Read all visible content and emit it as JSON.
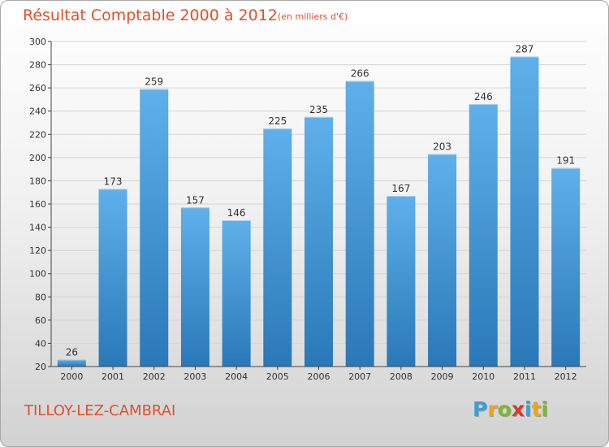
{
  "header": {
    "title": "Résultat Comptable 2000 à 2012",
    "subtitle": "(en milliers d'€)"
  },
  "footer": {
    "commune": "TILLOY-LEZ-CAMBRAI",
    "logo": [
      "P",
      "r",
      "o",
      "x",
      "i",
      "t",
      "i"
    ],
    "logo_colors": [
      "#3aa0d8",
      "#e8a51e",
      "#7cb82f",
      "#d83a2a",
      "#3aa0d8",
      "#e8a51e",
      "#7cb82f"
    ]
  },
  "colors": {
    "bar_light": "#5fb0ea",
    "bar_dark": "#2a78b8",
    "grid": "#d4d4d4",
    "axis": "#444444",
    "accent": "#e0502d"
  },
  "chart_data": {
    "type": "bar",
    "title": "Résultat Comptable 2000 à 2012",
    "subtitle": "(en milliers d'€)",
    "xlabel": "",
    "ylabel": "",
    "categories": [
      "2000",
      "2001",
      "2002",
      "2003",
      "2004",
      "2005",
      "2006",
      "2007",
      "2008",
      "2009",
      "2010",
      "2011",
      "2012"
    ],
    "values": [
      26,
      173,
      259,
      157,
      146,
      225,
      235,
      266,
      167,
      203,
      246,
      287,
      191
    ],
    "ylim": [
      20,
      300
    ],
    "yticks": [
      20,
      40,
      60,
      80,
      100,
      120,
      140,
      160,
      180,
      200,
      220,
      240,
      260,
      280,
      300
    ],
    "grid": true,
    "data_labels": true
  }
}
